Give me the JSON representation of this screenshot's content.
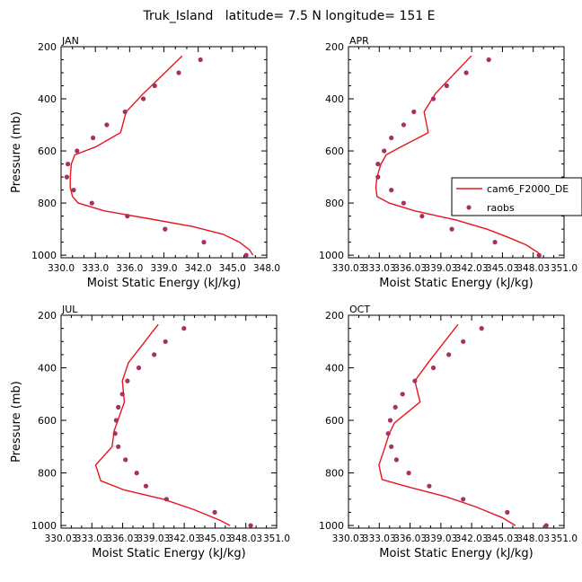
{
  "figure_title": "Truk_Island   latitude= 7.5 N longitude= 151 E",
  "colors": {
    "model": "#e8141e",
    "raobs": "#a6305f"
  },
  "legend": {
    "model_label": "cam6_F2000_DE",
    "obs_label": "raobs"
  },
  "chart_data": [
    {
      "type": "line",
      "panel_label": "JAN",
      "xlabel": "Moist Static Energy (kJ/kg)",
      "ylabel": "Pressure (mb)",
      "xlim": [
        330.0,
        348.0
      ],
      "ylim": [
        1010,
        200
      ],
      "y_inverted": true,
      "xticks": [
        330.0,
        333.0,
        336.0,
        339.0,
        342.0,
        345.0,
        348.0
      ],
      "xtick_labels": [
        "330.0",
        "333.0",
        "336.0",
        "339.0",
        "342.0",
        "345.0",
        "348.0"
      ],
      "yticks": [
        200,
        400,
        600,
        800,
        1000
      ],
      "ytick_labels": [
        "200",
        "400",
        "600",
        "800",
        "1000"
      ],
      "series": [
        {
          "name": "cam6_F2000_DE",
          "kind": "line",
          "points": [
            [
              340.6,
              235
            ],
            [
              337.2,
              380
            ],
            [
              335.7,
              450
            ],
            [
              335.2,
              530
            ],
            [
              333.0,
              585
            ],
            [
              331.2,
              615
            ],
            [
              330.9,
              650
            ],
            [
              330.8,
              700
            ],
            [
              330.8,
              740
            ],
            [
              331.0,
              775
            ],
            [
              331.5,
              800
            ],
            [
              333.8,
              830
            ],
            [
              337.7,
              860
            ],
            [
              341.5,
              890
            ],
            [
              344.2,
              920
            ],
            [
              345.6,
              950
            ],
            [
              346.5,
              980
            ],
            [
              346.8,
              1000
            ]
          ]
        },
        {
          "name": "raobs",
          "kind": "scatter",
          "points": [
            [
              342.2,
              250
            ],
            [
              340.3,
              300
            ],
            [
              338.2,
              350
            ],
            [
              337.2,
              400
            ],
            [
              335.6,
              450
            ],
            [
              334.0,
              500
            ],
            [
              332.8,
              550
            ],
            [
              331.4,
              600
            ],
            [
              330.6,
              650
            ],
            [
              330.5,
              700
            ],
            [
              331.1,
              750
            ],
            [
              332.7,
              800
            ],
            [
              335.8,
              850
            ],
            [
              339.1,
              900
            ],
            [
              342.5,
              950
            ],
            [
              346.2,
              1000
            ]
          ]
        }
      ]
    },
    {
      "type": "line",
      "panel_label": "APR",
      "xlabel": "Moist Static Energy (kJ/kg)",
      "ylabel": "",
      "xlim": [
        330.03,
        351.03
      ],
      "ylim": [
        1010,
        200
      ],
      "y_inverted": true,
      "xticks": [
        330.03,
        333.03,
        336.03,
        339.03,
        342.03,
        345.03,
        348.03,
        351.03
      ],
      "xtick_labels": [
        "330.03",
        "333.03",
        "336.03",
        "339.03",
        "342.03",
        "345.03",
        "348.03",
        "351.0"
      ],
      "yticks": [
        200,
        400,
        600,
        800,
        1000
      ],
      "ytick_labels": [
        "200",
        "400",
        "600",
        "800",
        "1000"
      ],
      "series": [
        {
          "name": "cam6_F2000_DE",
          "kind": "line",
          "points": [
            [
              342.0,
              235
            ],
            [
              338.5,
              380
            ],
            [
              337.4,
              450
            ],
            [
              337.8,
              530
            ],
            [
              335.1,
              585
            ],
            [
              333.7,
              615
            ],
            [
              333.2,
              650
            ],
            [
              332.8,
              700
            ],
            [
              332.7,
              740
            ],
            [
              332.8,
              775
            ],
            [
              334.0,
              800
            ],
            [
              336.5,
              830
            ],
            [
              340.5,
              865
            ],
            [
              343.5,
              900
            ],
            [
              345.5,
              930
            ],
            [
              347.3,
              960
            ],
            [
              348.5,
              990
            ],
            [
              348.6,
              1000
            ]
          ]
        },
        {
          "name": "raobs",
          "kind": "scatter",
          "points": [
            [
              343.7,
              250
            ],
            [
              341.5,
              300
            ],
            [
              339.6,
              350
            ],
            [
              338.3,
              400
            ],
            [
              336.4,
              450
            ],
            [
              335.4,
              500
            ],
            [
              334.2,
              550
            ],
            [
              333.5,
              600
            ],
            [
              332.9,
              650
            ],
            [
              332.9,
              700
            ],
            [
              334.2,
              750
            ],
            [
              335.4,
              800
            ],
            [
              337.2,
              850
            ],
            [
              340.1,
              900
            ],
            [
              344.3,
              950
            ],
            [
              348.6,
              1000
            ]
          ]
        }
      ]
    },
    {
      "type": "line",
      "panel_label": "JUL",
      "xlabel": "Moist Static Energy (kJ/kg)",
      "ylabel": "Pressure (mb)",
      "xlim": [
        330.03,
        351.03
      ],
      "ylim": [
        1010,
        200
      ],
      "y_inverted": true,
      "xticks": [
        330.03,
        333.03,
        336.03,
        339.03,
        342.03,
        345.03,
        348.03,
        351.03
      ],
      "xtick_labels": [
        "330.03",
        "333.03",
        "336.03",
        "339.03",
        "342.03",
        "345.03",
        "348.03",
        "351.0"
      ],
      "yticks": [
        200,
        400,
        600,
        800,
        1000
      ],
      "ytick_labels": [
        "200",
        "400",
        "600",
        "800",
        "1000"
      ],
      "series": [
        {
          "name": "cam6_F2000_DE",
          "kind": "line",
          "points": [
            [
              339.5,
              235
            ],
            [
              336.6,
              380
            ],
            [
              336.0,
              450
            ],
            [
              336.2,
              530
            ],
            [
              335.7,
              585
            ],
            [
              335.2,
              640
            ],
            [
              335.0,
              700
            ],
            [
              333.4,
              770
            ],
            [
              333.9,
              830
            ],
            [
              336.2,
              865
            ],
            [
              340.0,
              900
            ],
            [
              343.0,
              940
            ],
            [
              345.5,
              980
            ],
            [
              346.5,
              1000
            ]
          ]
        },
        {
          "name": "raobs",
          "kind": "scatter",
          "points": [
            [
              342.0,
              250
            ],
            [
              340.2,
              300
            ],
            [
              339.1,
              350
            ],
            [
              337.6,
              400
            ],
            [
              336.5,
              450
            ],
            [
              336.0,
              500
            ],
            [
              335.6,
              550
            ],
            [
              335.4,
              600
            ],
            [
              335.3,
              650
            ],
            [
              335.6,
              700
            ],
            [
              336.3,
              750
            ],
            [
              337.4,
              800
            ],
            [
              338.3,
              850
            ],
            [
              340.3,
              900
            ],
            [
              345.0,
              950
            ],
            [
              348.5,
              1000
            ]
          ]
        }
      ]
    },
    {
      "type": "line",
      "panel_label": "OCT",
      "xlabel": "Moist Static Energy (kJ/kg)",
      "ylabel": "",
      "xlim": [
        330.03,
        351.03
      ],
      "ylim": [
        1010,
        200
      ],
      "y_inverted": true,
      "xticks": [
        330.03,
        333.03,
        336.03,
        339.03,
        342.03,
        345.03,
        348.03,
        351.03
      ],
      "xtick_labels": [
        "330.03",
        "333.03",
        "336.03",
        "339.03",
        "342.03",
        "345.03",
        "348.03",
        "351.0"
      ],
      "yticks": [
        200,
        400,
        600,
        800,
        1000
      ],
      "ytick_labels": [
        "200",
        "400",
        "600",
        "800",
        "1000"
      ],
      "series": [
        {
          "name": "cam6_F2000_DE",
          "kind": "line",
          "points": [
            [
              340.7,
              235
            ],
            [
              337.8,
              380
            ],
            [
              336.5,
              450
            ],
            [
              337.0,
              530
            ],
            [
              334.5,
              610
            ],
            [
              334.0,
              650
            ],
            [
              333.6,
              700
            ],
            [
              333.0,
              770
            ],
            [
              333.3,
              825
            ],
            [
              336.0,
              855
            ],
            [
              339.5,
              890
            ],
            [
              342.5,
              930
            ],
            [
              345.0,
              970
            ],
            [
              346.3,
              1000
            ]
          ]
        },
        {
          "name": "raobs",
          "kind": "scatter",
          "points": [
            [
              343.0,
              250
            ],
            [
              341.2,
              300
            ],
            [
              339.8,
              350
            ],
            [
              338.3,
              400
            ],
            [
              336.5,
              450
            ],
            [
              335.3,
              500
            ],
            [
              334.6,
              550
            ],
            [
              334.1,
              600
            ],
            [
              333.9,
              650
            ],
            [
              334.2,
              700
            ],
            [
              334.7,
              750
            ],
            [
              335.9,
              800
            ],
            [
              337.9,
              850
            ],
            [
              341.2,
              900
            ],
            [
              345.5,
              950
            ],
            [
              349.3,
              1000
            ]
          ]
        }
      ]
    }
  ]
}
